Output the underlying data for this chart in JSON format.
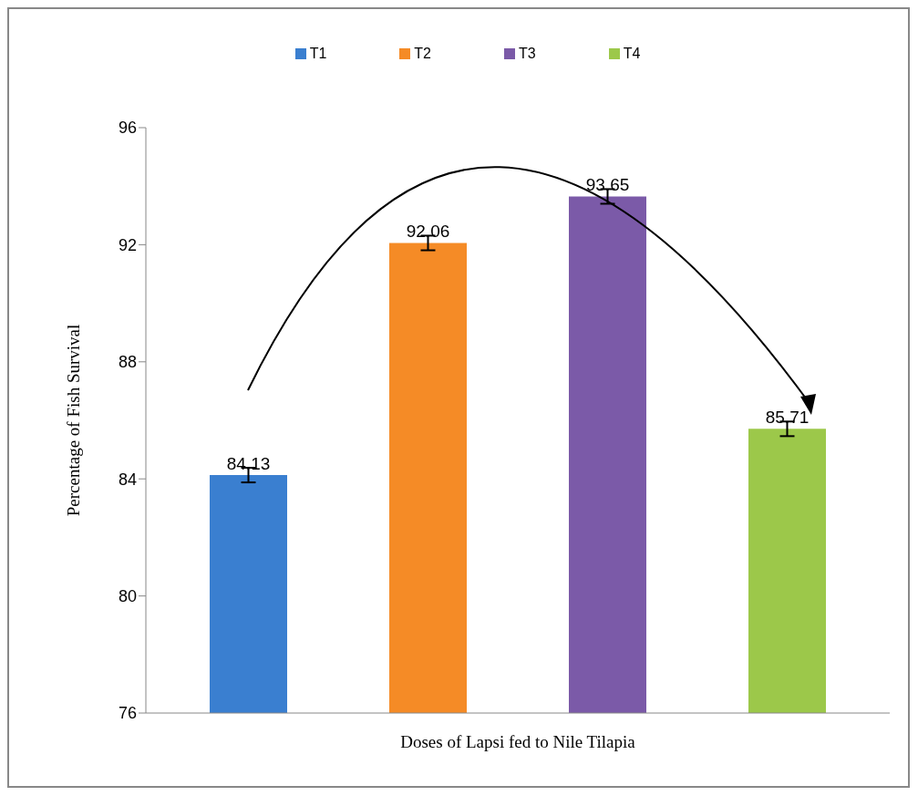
{
  "chart_data": {
    "type": "bar",
    "xlabel": "Doses of Lapsi fed to Nile Tilapia",
    "ylabel": "Percentage of Fish Survival",
    "categories": [
      null
    ],
    "series": [
      {
        "name": "T1",
        "color": "#3a7fd0",
        "values": [
          84.13
        ],
        "errors": [
          0.25
        ]
      },
      {
        "name": "T2",
        "color": "#f58b26",
        "values": [
          92.06
        ],
        "errors": [
          0.25
        ]
      },
      {
        "name": "T3",
        "color": "#7b5aa8",
        "values": [
          93.65
        ],
        "errors": [
          0.25
        ]
      },
      {
        "name": "T4",
        "color": "#9cc84a",
        "values": [
          85.71
        ],
        "errors": [
          0.25
        ]
      }
    ],
    "ylim": [
      76,
      96
    ],
    "yticks": [
      76,
      80,
      84,
      88,
      92,
      96
    ],
    "grid": false,
    "legend": "top",
    "data_labels": true
  }
}
